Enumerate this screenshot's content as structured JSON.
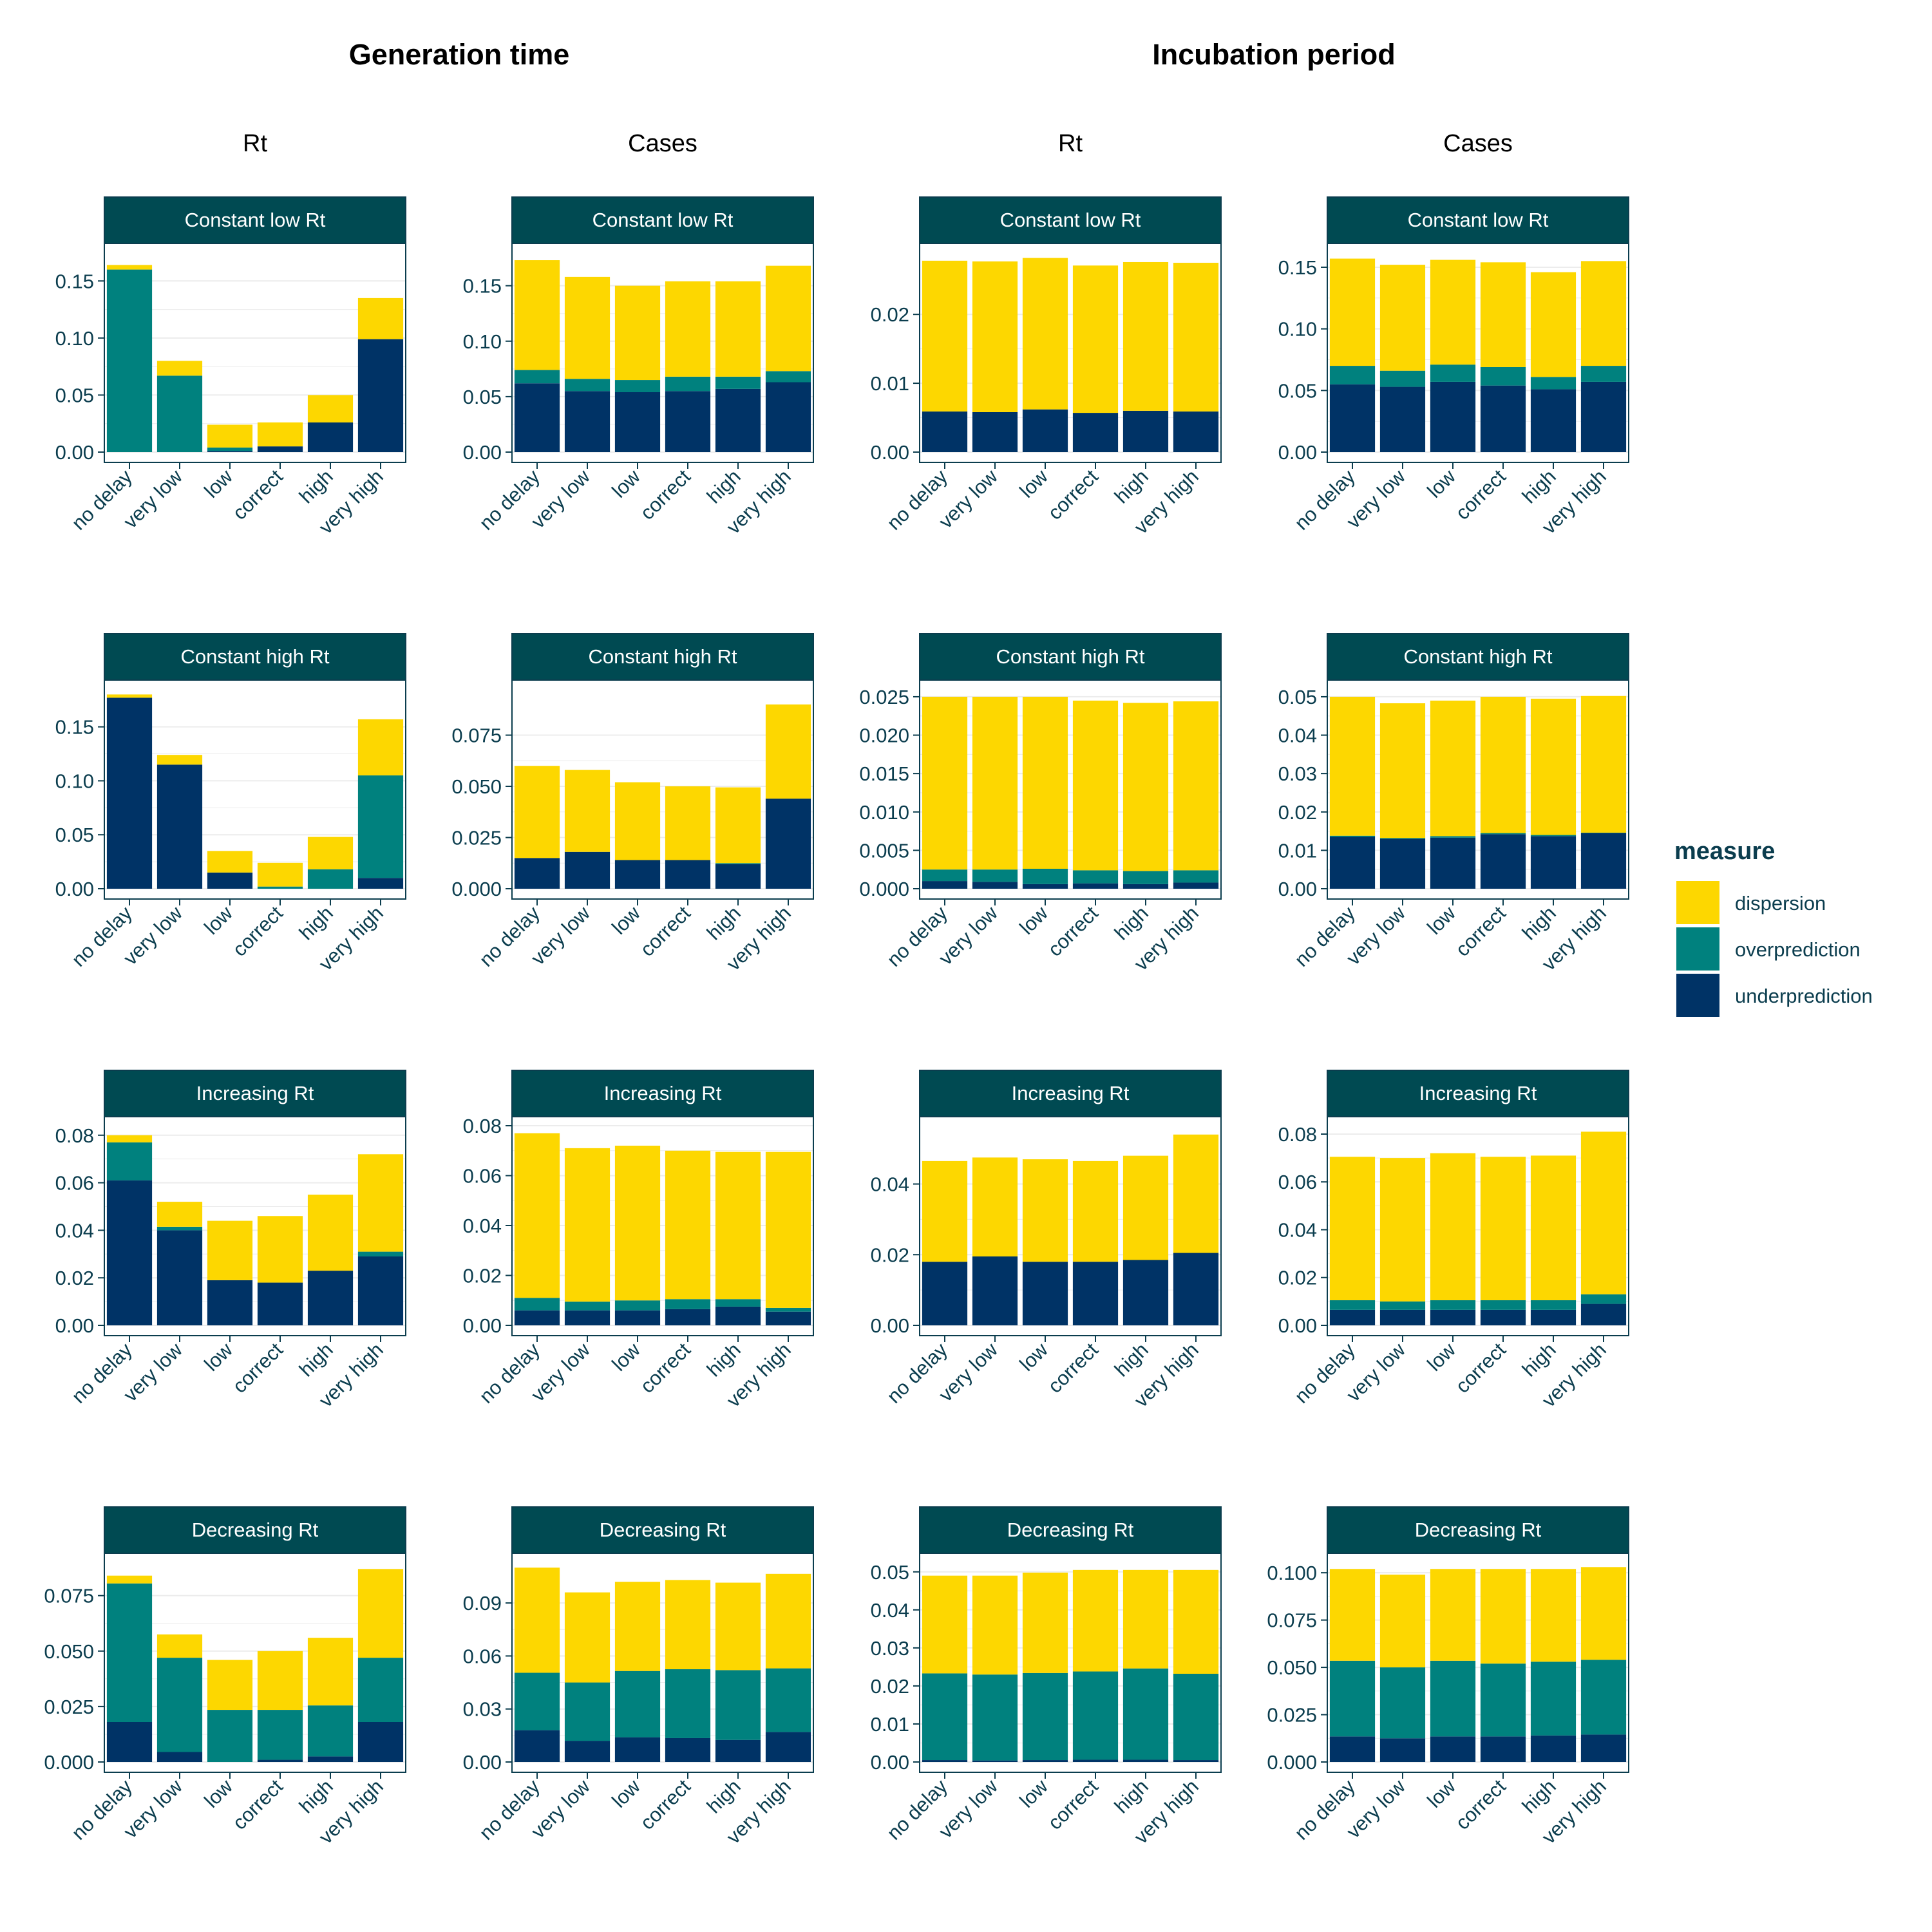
{
  "titles": {
    "generation_time": "Generation time",
    "incubation_period": "Incubation period"
  },
  "columns": [
    "Rt",
    "Cases",
    "Rt",
    "Cases"
  ],
  "rows": [
    "Constant low Rt",
    "Constant high Rt",
    "Increasing Rt",
    "Decreasing Rt"
  ],
  "legend": {
    "title": "measure",
    "items": [
      {
        "label": "dispersion",
        "color": "#fdd700"
      },
      {
        "label": "overprediction",
        "color": "#00817e"
      },
      {
        "label": "underprediction",
        "color": "#003366"
      }
    ]
  },
  "colors": {
    "strip": "#004a52",
    "panel_border": "#0b3d4e",
    "tick_text": "#0b3d4e",
    "grid": "#ececec"
  },
  "chart_data": [
    {
      "type": "bar",
      "stacked": true,
      "row": "Constant low Rt",
      "group": "Generation time",
      "column": "Rt",
      "categories": [
        "no delay",
        "very low",
        "low",
        "correct",
        "high",
        "very high"
      ],
      "ylim": [
        0,
        0.175
      ],
      "yticks": [
        0,
        0.05,
        0.1,
        0.15
      ],
      "ytick_labels": [
        "0.00",
        "0.05",
        "0.10",
        "0.15"
      ],
      "series": [
        {
          "name": "underprediction",
          "values": [
            0.0,
            0.0,
            0.001,
            0.005,
            0.026,
            0.099
          ]
        },
        {
          "name": "overprediction",
          "values": [
            0.16,
            0.067,
            0.003,
            0.0,
            0.0,
            0.0
          ]
        },
        {
          "name": "dispersion",
          "values": [
            0.004,
            0.013,
            0.02,
            0.021,
            0.024,
            0.036
          ]
        }
      ]
    },
    {
      "type": "bar",
      "stacked": true,
      "row": "Constant low Rt",
      "group": "Generation time",
      "column": "Cases",
      "categories": [
        "no delay",
        "very low",
        "low",
        "correct",
        "high",
        "very high"
      ],
      "ylim": [
        0,
        0.18
      ],
      "yticks": [
        0,
        0.05,
        0.1,
        0.15
      ],
      "ytick_labels": [
        "0.00",
        "0.05",
        "0.10",
        "0.15"
      ],
      "series": [
        {
          "name": "underprediction",
          "values": [
            0.062,
            0.055,
            0.054,
            0.055,
            0.057,
            0.063
          ]
        },
        {
          "name": "overprediction",
          "values": [
            0.012,
            0.011,
            0.011,
            0.013,
            0.011,
            0.01
          ]
        },
        {
          "name": "dispersion",
          "values": [
            0.099,
            0.092,
            0.085,
            0.086,
            0.086,
            0.095
          ]
        }
      ]
    },
    {
      "type": "bar",
      "stacked": true,
      "row": "Constant low Rt",
      "group": "Incubation period",
      "column": "Rt",
      "categories": [
        "no delay",
        "very low",
        "low",
        "correct",
        "high",
        "very high"
      ],
      "ylim": [
        0,
        0.029
      ],
      "yticks": [
        0,
        0.01,
        0.02
      ],
      "ytick_labels": [
        "0.00",
        "0.01",
        "0.02"
      ],
      "series": [
        {
          "name": "underprediction",
          "values": [
            0.0059,
            0.0058,
            0.0062,
            0.0057,
            0.006,
            0.0059
          ]
        },
        {
          "name": "overprediction",
          "values": [
            0,
            0,
            0,
            0,
            0,
            0
          ]
        },
        {
          "name": "dispersion",
          "values": [
            0.0219,
            0.0219,
            0.022,
            0.0214,
            0.0216,
            0.0216
          ]
        }
      ]
    },
    {
      "type": "bar",
      "stacked": true,
      "row": "Constant low Rt",
      "group": "Incubation period",
      "column": "Cases",
      "categories": [
        "no delay",
        "very low",
        "low",
        "correct",
        "high",
        "very high"
      ],
      "ylim": [
        0,
        0.162
      ],
      "yticks": [
        0,
        0.05,
        0.1,
        0.15
      ],
      "ytick_labels": [
        "0.00",
        "0.05",
        "0.10",
        "0.15"
      ],
      "series": [
        {
          "name": "underprediction",
          "values": [
            0.055,
            0.053,
            0.057,
            0.054,
            0.051,
            0.057
          ]
        },
        {
          "name": "overprediction",
          "values": [
            0.015,
            0.013,
            0.014,
            0.015,
            0.01,
            0.013
          ]
        },
        {
          "name": "dispersion",
          "values": [
            0.087,
            0.086,
            0.085,
            0.085,
            0.085,
            0.085
          ]
        }
      ]
    },
    {
      "type": "bar",
      "stacked": true,
      "row": "Constant high Rt",
      "group": "Generation time",
      "column": "Rt",
      "categories": [
        "no delay",
        "very low",
        "low",
        "correct",
        "high",
        "very high"
      ],
      "ylim": [
        0,
        0.185
      ],
      "yticks": [
        0,
        0.05,
        0.1,
        0.15
      ],
      "ytick_labels": [
        "0.00",
        "0.05",
        "0.10",
        "0.15"
      ],
      "series": [
        {
          "name": "underprediction",
          "values": [
            0.177,
            0.115,
            0.015,
            0.0,
            0.0,
            0.01
          ]
        },
        {
          "name": "overprediction",
          "values": [
            0.0,
            0.0,
            0.0,
            0.002,
            0.018,
            0.095
          ]
        },
        {
          "name": "dispersion",
          "values": [
            0.003,
            0.009,
            0.02,
            0.022,
            0.03,
            0.052
          ]
        }
      ]
    },
    {
      "type": "bar",
      "stacked": true,
      "row": "Constant high Rt",
      "group": "Generation time",
      "column": "Cases",
      "categories": [
        "no delay",
        "very low",
        "low",
        "correct",
        "high",
        "very high"
      ],
      "ylim": [
        0,
        0.0975
      ],
      "yticks": [
        0,
        0.025,
        0.05,
        0.075
      ],
      "ytick_labels": [
        "0.000",
        "0.025",
        "0.050",
        "0.075"
      ],
      "series": [
        {
          "name": "underprediction",
          "values": [
            0.015,
            0.018,
            0.014,
            0.014,
            0.012,
            0.044
          ]
        },
        {
          "name": "overprediction",
          "values": [
            0.0,
            0.0,
            0.0,
            0.0,
            0.0005,
            0.0
          ]
        },
        {
          "name": "dispersion",
          "values": [
            0.045,
            0.04,
            0.038,
            0.036,
            0.037,
            0.046
          ]
        }
      ]
    },
    {
      "type": "bar",
      "stacked": true,
      "row": "Constant high Rt",
      "group": "Incubation period",
      "column": "Rt",
      "categories": [
        "no delay",
        "very low",
        "low",
        "correct",
        "high",
        "very high"
      ],
      "ylim": [
        0,
        0.026
      ],
      "yticks": [
        0,
        0.005,
        0.01,
        0.015,
        0.02,
        0.025
      ],
      "ytick_labels": [
        "0.000",
        "0.005",
        "0.010",
        "0.015",
        "0.020",
        "0.025"
      ],
      "series": [
        {
          "name": "underprediction",
          "values": [
            0.001,
            0.0009,
            0.0006,
            0.0007,
            0.0006,
            0.0008
          ]
        },
        {
          "name": "overprediction",
          "values": [
            0.0015,
            0.0016,
            0.002,
            0.0017,
            0.0017,
            0.0016
          ]
        },
        {
          "name": "dispersion",
          "values": [
            0.0225,
            0.0225,
            0.0224,
            0.0221,
            0.0219,
            0.022
          ]
        }
      ]
    },
    {
      "type": "bar",
      "stacked": true,
      "row": "Constant high Rt",
      "group": "Incubation period",
      "column": "Cases",
      "categories": [
        "no delay",
        "very low",
        "low",
        "correct",
        "high",
        "very high"
      ],
      "ylim": [
        0,
        0.052
      ],
      "yticks": [
        0,
        0.01,
        0.02,
        0.03,
        0.04,
        0.05
      ],
      "ytick_labels": [
        "0.00",
        "0.01",
        "0.02",
        "0.03",
        "0.04",
        "0.05"
      ],
      "series": [
        {
          "name": "underprediction",
          "values": [
            0.0135,
            0.013,
            0.0133,
            0.0142,
            0.0137,
            0.0145
          ]
        },
        {
          "name": "overprediction",
          "values": [
            0.0003,
            0.0002,
            0.0004,
            0.0003,
            0.0003,
            0.0001
          ]
        },
        {
          "name": "dispersion",
          "values": [
            0.0362,
            0.0351,
            0.0353,
            0.0355,
            0.0355,
            0.0356
          ]
        }
      ]
    },
    {
      "type": "bar",
      "stacked": true,
      "row": "Increasing Rt",
      "group": "Generation time",
      "column": "Rt",
      "categories": [
        "no delay",
        "very low",
        "low",
        "correct",
        "high",
        "very high"
      ],
      "ylim": [
        0,
        0.084
      ],
      "yticks": [
        0,
        0.02,
        0.04,
        0.06,
        0.08
      ],
      "ytick_labels": [
        "0.00",
        "0.02",
        "0.04",
        "0.06",
        "0.08"
      ],
      "series": [
        {
          "name": "underprediction",
          "values": [
            0.061,
            0.04,
            0.019,
            0.018,
            0.023,
            0.029
          ]
        },
        {
          "name": "overprediction",
          "values": [
            0.016,
            0.0015,
            0.0,
            0.0,
            0.0,
            0.002
          ]
        },
        {
          "name": "dispersion",
          "values": [
            0.003,
            0.0105,
            0.025,
            0.028,
            0.032,
            0.041
          ]
        }
      ]
    },
    {
      "type": "bar",
      "stacked": true,
      "row": "Increasing Rt",
      "group": "Generation time",
      "column": "Cases",
      "categories": [
        "no delay",
        "very low",
        "low",
        "correct",
        "high",
        "very high"
      ],
      "ylim": [
        0,
        0.08
      ],
      "yticks": [
        0,
        0.02,
        0.04,
        0.06,
        0.08
      ],
      "ytick_labels": [
        "0.00",
        "0.02",
        "0.04",
        "0.06",
        "0.08"
      ],
      "series": [
        {
          "name": "underprediction",
          "values": [
            0.006,
            0.006,
            0.006,
            0.0065,
            0.0075,
            0.0055
          ]
        },
        {
          "name": "overprediction",
          "values": [
            0.005,
            0.0035,
            0.004,
            0.004,
            0.003,
            0.0015
          ]
        },
        {
          "name": "dispersion",
          "values": [
            0.066,
            0.0615,
            0.062,
            0.0595,
            0.059,
            0.0625
          ]
        }
      ]
    },
    {
      "type": "bar",
      "stacked": true,
      "row": "Increasing Rt",
      "group": "Incubation period",
      "column": "Rt",
      "categories": [
        "no delay",
        "very low",
        "low",
        "correct",
        "high",
        "very high"
      ],
      "ylim": [
        0,
        0.0565
      ],
      "yticks": [
        0,
        0.02,
        0.04
      ],
      "ytick_labels": [
        "0.00",
        "0.02",
        "0.04"
      ],
      "series": [
        {
          "name": "underprediction",
          "values": [
            0.018,
            0.0195,
            0.018,
            0.018,
            0.0185,
            0.0205
          ]
        },
        {
          "name": "overprediction",
          "values": [
            0,
            0,
            0,
            0,
            0,
            0
          ]
        },
        {
          "name": "dispersion",
          "values": [
            0.0285,
            0.028,
            0.029,
            0.0285,
            0.0295,
            0.0335
          ]
        }
      ]
    },
    {
      "type": "bar",
      "stacked": true,
      "row": "Increasing Rt",
      "group": "Incubation period",
      "column": "Cases",
      "categories": [
        "no delay",
        "very low",
        "low",
        "correct",
        "high",
        "very high"
      ],
      "ylim": [
        0,
        0.0835
      ],
      "yticks": [
        0,
        0.02,
        0.04,
        0.06,
        0.08
      ],
      "ytick_labels": [
        "0.00",
        "0.02",
        "0.04",
        "0.06",
        "0.08"
      ],
      "series": [
        {
          "name": "underprediction",
          "values": [
            0.0065,
            0.0065,
            0.0065,
            0.0065,
            0.0065,
            0.009
          ]
        },
        {
          "name": "overprediction",
          "values": [
            0.004,
            0.0035,
            0.004,
            0.004,
            0.004,
            0.004
          ]
        },
        {
          "name": "dispersion",
          "values": [
            0.06,
            0.06,
            0.0615,
            0.06,
            0.0605,
            0.068
          ]
        }
      ]
    },
    {
      "type": "bar",
      "stacked": true,
      "row": "Decreasing Rt",
      "group": "Generation time",
      "column": "Rt",
      "categories": [
        "no delay",
        "very low",
        "low",
        "correct",
        "high",
        "very high"
      ],
      "ylim": [
        0,
        0.09
      ],
      "yticks": [
        0,
        0.025,
        0.05,
        0.075
      ],
      "ytick_labels": [
        "0.000",
        "0.025",
        "0.050",
        "0.075"
      ],
      "series": [
        {
          "name": "underprediction",
          "values": [
            0.018,
            0.0045,
            0.0,
            0.001,
            0.0025,
            0.018
          ]
        },
        {
          "name": "overprediction",
          "values": [
            0.0625,
            0.0425,
            0.0235,
            0.0225,
            0.023,
            0.029
          ]
        },
        {
          "name": "dispersion",
          "values": [
            0.0035,
            0.0105,
            0.0225,
            0.0265,
            0.0305,
            0.04
          ]
        }
      ]
    },
    {
      "type": "bar",
      "stacked": true,
      "row": "Decreasing Rt",
      "group": "Generation time",
      "column": "Cases",
      "categories": [
        "no delay",
        "very low",
        "low",
        "correct",
        "high",
        "very high"
      ],
      "ylim": [
        0,
        0.113
      ],
      "yticks": [
        0,
        0.03,
        0.06,
        0.09
      ],
      "ytick_labels": [
        "0.00",
        "0.03",
        "0.06",
        "0.09"
      ],
      "series": [
        {
          "name": "underprediction",
          "values": [
            0.018,
            0.012,
            0.014,
            0.0135,
            0.0125,
            0.017
          ]
        },
        {
          "name": "overprediction",
          "values": [
            0.0325,
            0.033,
            0.0375,
            0.039,
            0.0395,
            0.036
          ]
        },
        {
          "name": "dispersion",
          "values": [
            0.0595,
            0.051,
            0.0505,
            0.0505,
            0.0495,
            0.0535
          ]
        }
      ]
    },
    {
      "type": "bar",
      "stacked": true,
      "row": "Decreasing Rt",
      "group": "Incubation period",
      "column": "Rt",
      "categories": [
        "no delay",
        "very low",
        "low",
        "correct",
        "high",
        "very high"
      ],
      "ylim": [
        0,
        0.0525
      ],
      "yticks": [
        0,
        0.01,
        0.02,
        0.03,
        0.04,
        0.05
      ],
      "ytick_labels": [
        "0.00",
        "0.01",
        "0.02",
        "0.03",
        "0.04",
        "0.05"
      ],
      "series": [
        {
          "name": "underprediction",
          "values": [
            0.0005,
            0.0004,
            0.0005,
            0.0006,
            0.0006,
            0.0005
          ]
        },
        {
          "name": "overprediction",
          "values": [
            0.0228,
            0.0226,
            0.0229,
            0.0232,
            0.024,
            0.0227
          ]
        },
        {
          "name": "dispersion",
          "values": [
            0.0257,
            0.026,
            0.0264,
            0.0267,
            0.0259,
            0.0273
          ]
        }
      ]
    },
    {
      "type": "bar",
      "stacked": true,
      "row": "Decreasing Rt",
      "group": "Incubation period",
      "column": "Cases",
      "categories": [
        "no delay",
        "very low",
        "low",
        "correct",
        "high",
        "very high"
      ],
      "ylim": [
        0,
        0.1055
      ],
      "yticks": [
        0,
        0.025,
        0.05,
        0.075,
        0.1
      ],
      "ytick_labels": [
        "0.000",
        "0.025",
        "0.050",
        "0.075",
        "0.100"
      ],
      "series": [
        {
          "name": "underprediction",
          "values": [
            0.0135,
            0.0125,
            0.0135,
            0.0135,
            0.014,
            0.0145
          ]
        },
        {
          "name": "overprediction",
          "values": [
            0.04,
            0.0375,
            0.04,
            0.0385,
            0.039,
            0.0395
          ]
        },
        {
          "name": "dispersion",
          "values": [
            0.0485,
            0.049,
            0.0485,
            0.05,
            0.049,
            0.049
          ]
        }
      ]
    }
  ]
}
